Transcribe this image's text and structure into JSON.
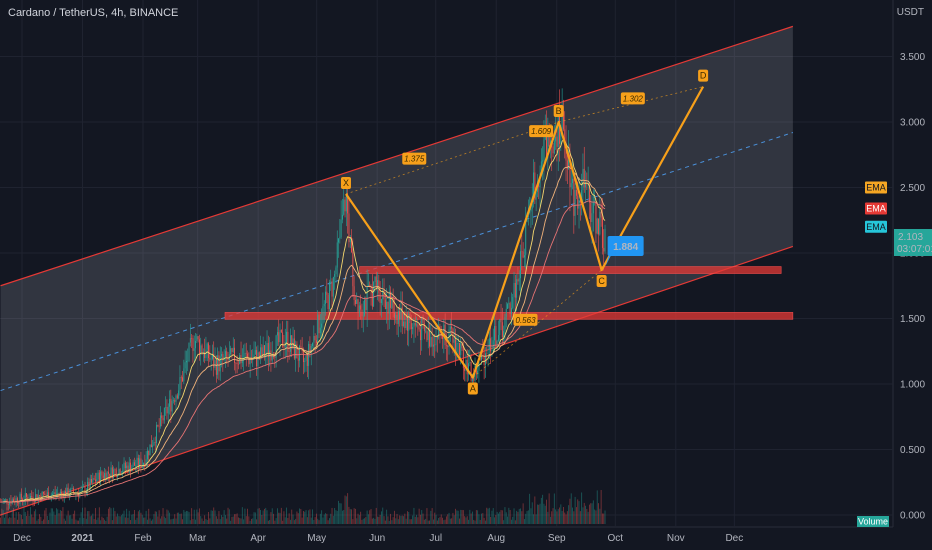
{
  "header": {
    "title": "Cardano / TetherUS, 4h, BINANCE"
  },
  "price_axis": {
    "currency": "USDT"
  },
  "current_price": {
    "value": "2.103",
    "countdown": "03:07:01",
    "color": "#26a69a"
  },
  "indicator_badges": [
    {
      "label": "EMA",
      "color": "#f5a623"
    },
    {
      "label": "EMA",
      "color": "#e53935"
    },
    {
      "label": "EMA",
      "color": "#26c6da"
    }
  ],
  "callout": {
    "value": "1.884",
    "color": "#2196f3"
  },
  "volume_badge": {
    "label": "Volume",
    "color": "#26a69a"
  },
  "colors": {
    "pattern": "#f7a01a",
    "channel": "#e53935",
    "zone": "#e53935",
    "midline": "#4a90d9"
  },
  "chart_data": {
    "type": "candlestick",
    "title": "Cardano / TetherUS, 4h, BINANCE",
    "y_scale": "linear",
    "ylim": [
      -0.05,
      3.87
    ],
    "y_ticks": [
      "0.000",
      "0.500",
      "1.000",
      "1.500",
      "2.000",
      "2.500",
      "3.000",
      "3.500"
    ],
    "x_ticks": [
      {
        "label": "Dec",
        "date": "2020-12-01"
      },
      {
        "label": "2021",
        "date": "2021-01-01"
      },
      {
        "label": "Feb",
        "date": "2021-02-01"
      },
      {
        "label": "Mar",
        "date": "2021-03-01"
      },
      {
        "label": "Apr",
        "date": "2021-04-01"
      },
      {
        "label": "May",
        "date": "2021-05-01"
      },
      {
        "label": "Jun",
        "date": "2021-06-01"
      },
      {
        "label": "Jul",
        "date": "2021-07-01"
      },
      {
        "label": "Aug",
        "date": "2021-08-01"
      },
      {
        "label": "Sep",
        "date": "2021-09-01"
      },
      {
        "label": "Oct",
        "date": "2021-10-01"
      },
      {
        "label": "Nov",
        "date": "2021-11-01"
      },
      {
        "label": "Dec",
        "date": "2021-12-01"
      }
    ],
    "price_path": [
      {
        "date": "2020-11-20",
        "price": 0.1
      },
      {
        "date": "2020-12-10",
        "price": 0.15
      },
      {
        "date": "2021-01-01",
        "price": 0.18
      },
      {
        "date": "2021-01-10",
        "price": 0.3
      },
      {
        "date": "2021-01-20",
        "price": 0.35
      },
      {
        "date": "2021-02-01",
        "price": 0.4
      },
      {
        "date": "2021-02-10",
        "price": 0.7
      },
      {
        "date": "2021-02-20",
        "price": 1.0
      },
      {
        "date": "2021-02-27",
        "price": 1.35
      },
      {
        "date": "2021-03-10",
        "price": 1.15
      },
      {
        "date": "2021-03-20",
        "price": 1.2
      },
      {
        "date": "2021-04-01",
        "price": 1.2
      },
      {
        "date": "2021-04-15",
        "price": 1.35
      },
      {
        "date": "2021-04-25",
        "price": 1.15
      },
      {
        "date": "2021-05-03",
        "price": 1.5
      },
      {
        "date": "2021-05-10",
        "price": 1.8
      },
      {
        "date": "2021-05-16",
        "price": 2.45
      },
      {
        "date": "2021-05-20",
        "price": 1.7
      },
      {
        "date": "2021-05-24",
        "price": 1.6
      },
      {
        "date": "2021-06-01",
        "price": 1.75
      },
      {
        "date": "2021-06-10",
        "price": 1.55
      },
      {
        "date": "2021-06-20",
        "price": 1.45
      },
      {
        "date": "2021-06-28",
        "price": 1.35
      },
      {
        "date": "2021-07-05",
        "price": 1.4
      },
      {
        "date": "2021-07-12",
        "price": 1.3
      },
      {
        "date": "2021-07-20",
        "price": 1.05
      },
      {
        "date": "2021-07-28",
        "price": 1.3
      },
      {
        "date": "2021-08-05",
        "price": 1.45
      },
      {
        "date": "2021-08-12",
        "price": 1.8
      },
      {
        "date": "2021-08-20",
        "price": 2.5
      },
      {
        "date": "2021-08-27",
        "price": 2.85
      },
      {
        "date": "2021-09-02",
        "price": 3.0
      },
      {
        "date": "2021-09-06",
        "price": 2.85
      },
      {
        "date": "2021-09-10",
        "price": 2.4
      },
      {
        "date": "2021-09-14",
        "price": 2.55
      },
      {
        "date": "2021-09-18",
        "price": 2.35
      },
      {
        "date": "2021-09-22",
        "price": 2.25
      },
      {
        "date": "2021-09-26",
        "price": 2.1
      }
    ],
    "harmonic_pattern": {
      "points": [
        {
          "label": "X",
          "date": "2021-05-16",
          "price": 2.45
        },
        {
          "label": "A",
          "date": "2021-07-20",
          "price": 1.05
        },
        {
          "label": "B",
          "date": "2021-09-02",
          "price": 3.0
        },
        {
          "label": "C",
          "date": "2021-09-24",
          "price": 1.87
        },
        {
          "label": "D",
          "date": "2021-11-15",
          "price": 3.27
        }
      ],
      "ratios": [
        {
          "label": "1.375",
          "date": "2021-06-20",
          "price": 2.72
        },
        {
          "label": "1.609",
          "date": "2021-08-24",
          "price": 2.93
        },
        {
          "label": "1.302",
          "date": "2021-10-10",
          "price": 3.18
        },
        {
          "label": "0.563",
          "date": "2021-08-16",
          "price": 1.49
        }
      ]
    },
    "channel": {
      "start_date": "2020-11-20",
      "end_date": "2021-12-31",
      "upper": [
        1.75,
        3.73
      ],
      "mid": [
        0.95,
        2.92
      ],
      "lower": [
        0.0,
        2.05
      ]
    },
    "zones": [
      {
        "price": 1.87,
        "start_date": "2021-05-23",
        "end_date": "2021-12-25"
      },
      {
        "price": 1.52,
        "start_date": "2021-03-15",
        "end_date": "2021-12-31"
      }
    ]
  }
}
